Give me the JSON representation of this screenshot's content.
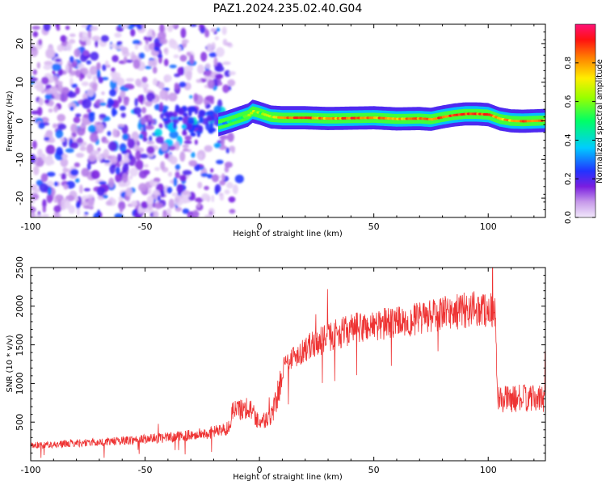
{
  "figure_title": "PAZ1.2024.235.02.40.G04",
  "chart_data": [
    {
      "type": "heatmap",
      "title": "PAZ1.2024.235.02.40.G04",
      "xlabel": "Height of straight line (km)",
      "ylabel": "Frequency (Hz)",
      "xlim": [
        -100,
        125
      ],
      "ylim": [
        -25,
        25
      ],
      "xticks": [
        -100,
        -50,
        0,
        50,
        100
      ],
      "yticks": [
        -20,
        -10,
        0,
        10,
        20
      ],
      "grid": false,
      "colorbar": {
        "label": "Normalized spectral amplitude",
        "range": [
          0,
          1
        ],
        "ticks": [
          0.0,
          0.2,
          0.4,
          0.6,
          0.8
        ]
      },
      "ridge": {
        "description_points_x": [
          -18,
          -15,
          -10,
          -5,
          -3,
          0,
          5,
          10,
          20,
          30,
          40,
          50,
          60,
          70,
          75,
          80,
          85,
          90,
          95,
          100,
          105,
          110,
          115,
          120,
          125
        ],
        "frequency": [
          -1,
          -0.5,
          0.5,
          1.5,
          2.5,
          2,
          1,
          0.8,
          0.8,
          0.6,
          0.7,
          0.8,
          0.5,
          0.6,
          0.4,
          1,
          1.5,
          1.8,
          1.8,
          1.6,
          0.5,
          0,
          -0.1,
          0,
          0.1
        ],
        "amplitude": [
          0.3,
          0.4,
          0.5,
          0.6,
          0.7,
          0.6,
          0.7,
          0.85,
          0.9,
          0.8,
          0.9,
          0.85,
          0.8,
          0.85,
          0.85,
          0.9,
          0.9,
          0.9,
          0.9,
          0.9,
          0.8,
          0.8,
          0.85,
          0.9,
          0.85
        ]
      },
      "noise_region_x": [
        -100,
        -15
      ],
      "noise_amplitude_range": [
        0.02,
        0.3
      ]
    },
    {
      "type": "line",
      "xlabel": "Height of straight line (km)",
      "ylabel": "SNR (10 * v/v)",
      "xlim": [
        -100,
        125
      ],
      "ylim": [
        0,
        2500
      ],
      "xticks": [
        -100,
        -50,
        0,
        50,
        100
      ],
      "yticks": [
        500,
        1000,
        1500,
        2000,
        2500
      ],
      "grid": false,
      "color": "#ee3333",
      "series": [
        {
          "x": [
            -100,
            -90,
            -80,
            -70,
            -60,
            -50,
            -40,
            -30,
            -20,
            -13,
            -12,
            -10,
            -5,
            0,
            5,
            8,
            10,
            15,
            20,
            30,
            40,
            50,
            60,
            70,
            80,
            85,
            90,
            95,
            100,
            103,
            104,
            105,
            110,
            115,
            120,
            125
          ],
          "values": [
            200,
            210,
            230,
            240,
            260,
            280,
            300,
            330,
            370,
            430,
            650,
            650,
            700,
            500,
            550,
            850,
            1200,
            1350,
            1450,
            1600,
            1700,
            1750,
            1800,
            1830,
            1900,
            1920,
            1950,
            1970,
            1950,
            1950,
            850,
            800,
            800,
            810,
            800,
            810
          ]
        }
      ]
    }
  ],
  "colors": {
    "line": "#ee3333",
    "background": "#ffffff",
    "axis": "#000000"
  }
}
